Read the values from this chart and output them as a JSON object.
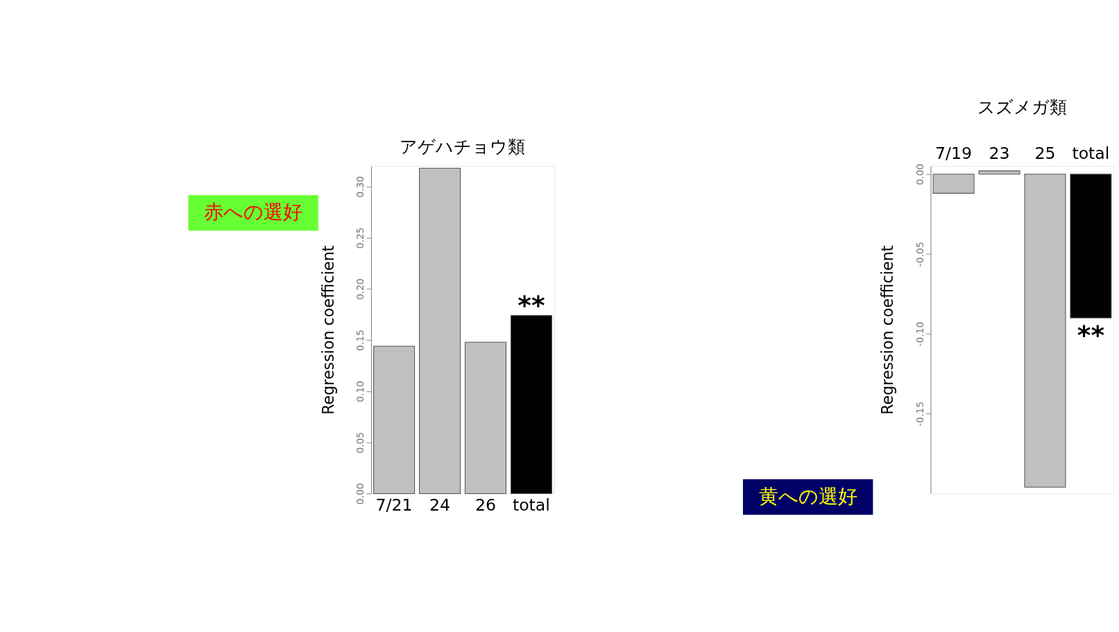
{
  "chart_data": [
    {
      "type": "bar",
      "title": "アゲハチョウ類",
      "ylabel": "Regression coefficient",
      "categories": [
        "7/21",
        "24",
        "26",
        "total"
      ],
      "values": [
        0.144,
        0.318,
        0.148,
        0.174
      ],
      "colors": [
        "#c0c0c0",
        "#c0c0c0",
        "#c0c0c0",
        "#000000"
      ],
      "ylim": [
        0,
        0.32
      ],
      "yticks": [
        {
          "value": 0,
          "label": "0.00"
        },
        {
          "value": 0.05,
          "label": "0.05"
        },
        {
          "value": 0.1,
          "label": "0.10"
        },
        {
          "value": 0.15,
          "label": "0.15"
        },
        {
          "value": 0.2,
          "label": "0.20"
        },
        {
          "value": 0.25,
          "label": "0.25"
        },
        {
          "value": 0.3,
          "label": "0.30"
        }
      ],
      "grid": false,
      "annotations": [
        {
          "text": "**",
          "x": "total",
          "y": 0.174
        },
        "赤への選好"
      ]
    },
    {
      "type": "bar",
      "title": "スズメガ類",
      "ylabel": "Regression coefficient",
      "categories": [
        "7/19",
        "23",
        "25",
        "total"
      ],
      "values": [
        -0.012,
        0.002,
        -0.196,
        -0.09
      ],
      "colors": [
        "#c0c0c0",
        "#c0c0c0",
        "#c0c0c0",
        "#000000"
      ],
      "ylim": [
        -0.2,
        0.005
      ],
      "yticks": [
        {
          "value": -0.15,
          "label": "-0.15"
        },
        {
          "value": -0.1,
          "label": "-0.10"
        },
        {
          "value": -0.05,
          "label": "-0.05"
        },
        {
          "value": 0,
          "label": "0.00"
        }
      ],
      "grid": false,
      "annotations": [
        {
          "text": "**",
          "x": "total",
          "y": -0.09
        },
        "黄への選好"
      ]
    }
  ]
}
